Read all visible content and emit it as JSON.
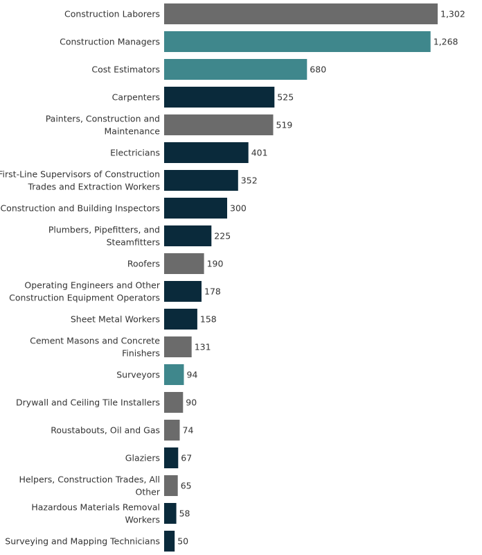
{
  "chart_data": {
    "type": "bar",
    "orientation": "horizontal",
    "title": "",
    "xlabel": "",
    "ylabel": "",
    "xlim": [
      0,
      1302
    ],
    "grid": false,
    "legend": "none",
    "categories": [
      [
        "Construction Laborers"
      ],
      [
        "Construction Managers"
      ],
      [
        "Cost Estimators"
      ],
      [
        "Carpenters"
      ],
      [
        "Painters, Construction and",
        "Maintenance"
      ],
      [
        "Electricians"
      ],
      [
        "First-Line Supervisors of Construction",
        "Trades and Extraction Workers"
      ],
      [
        "Construction and Building Inspectors"
      ],
      [
        "Plumbers, Pipefitters, and",
        "Steamfitters"
      ],
      [
        "Roofers"
      ],
      [
        "Operating Engineers and Other",
        "Construction Equipment Operators"
      ],
      [
        "Sheet Metal Workers"
      ],
      [
        "Cement Masons and Concrete",
        "Finishers"
      ],
      [
        "Surveyors"
      ],
      [
        "Drywall and Ceiling Tile Installers"
      ],
      [
        "Roustabouts, Oil and Gas"
      ],
      [
        "Glaziers"
      ],
      [
        "Helpers, Construction Trades, All",
        "Other"
      ],
      [
        "Hazardous Materials Removal",
        "Workers"
      ],
      [
        "Surveying and Mapping Technicians"
      ]
    ],
    "values": [
      1302,
      1268,
      680,
      525,
      519,
      401,
      352,
      300,
      225,
      190,
      178,
      158,
      131,
      94,
      90,
      74,
      67,
      65,
      58,
      50
    ],
    "value_labels": [
      "1,302",
      "1,268",
      "680",
      "525",
      "519",
      "401",
      "352",
      "300",
      "225",
      "190",
      "178",
      "158",
      "131",
      "94",
      "90",
      "74",
      "67",
      "65",
      "58",
      "50"
    ],
    "bar_colors": [
      "#6b6b6b",
      "#3f878c",
      "#3f878c",
      "#0a2a3b",
      "#6b6b6b",
      "#0a2a3b",
      "#0a2a3b",
      "#0a2a3b",
      "#0a2a3b",
      "#6b6b6b",
      "#0a2a3b",
      "#0a2a3b",
      "#6b6b6b",
      "#3f878c",
      "#6b6b6b",
      "#6b6b6b",
      "#0a2a3b",
      "#6b6b6b",
      "#0a2a3b",
      "#0a2a3b"
    ]
  }
}
